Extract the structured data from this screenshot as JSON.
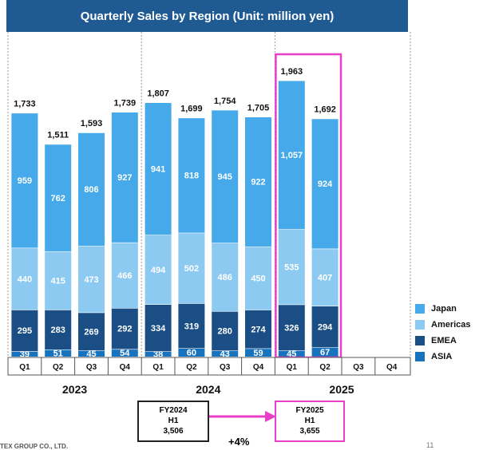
{
  "chart_data": {
    "type": "bar",
    "stacked": true,
    "title": "Quarterly Sales by Region (Unit: million yen)",
    "years": [
      {
        "label": "2023",
        "quarters": [
          "Q1",
          "Q2",
          "Q3",
          "Q4"
        ]
      },
      {
        "label": "2024",
        "quarters": [
          "Q1",
          "Q2",
          "Q3",
          "Q4"
        ]
      },
      {
        "label": "2025",
        "quarters": [
          "Q1",
          "Q2",
          "Q3",
          "Q4"
        ]
      }
    ],
    "categories": [
      "2023 Q1",
      "2023 Q2",
      "2023 Q3",
      "2023 Q4",
      "2024 Q1",
      "2024 Q2",
      "2024 Q3",
      "2024 Q4",
      "2025 Q1",
      "2025 Q2",
      "2025 Q3",
      "2025 Q4"
    ],
    "series": [
      {
        "name": "ASIA",
        "color": "#1873be",
        "values": [
          39,
          51,
          45,
          54,
          38,
          60,
          43,
          59,
          45,
          67,
          null,
          null
        ]
      },
      {
        "name": "EMEA",
        "color": "#1a4e85",
        "values": [
          295,
          283,
          269,
          292,
          334,
          319,
          280,
          274,
          326,
          294,
          null,
          null
        ]
      },
      {
        "name": "Americas",
        "color": "#8dcaf2",
        "values": [
          440,
          415,
          473,
          466,
          494,
          502,
          486,
          450,
          535,
          407,
          null,
          null
        ]
      },
      {
        "name": "Japan",
        "color": "#46a9ea",
        "values": [
          959,
          762,
          806,
          927,
          941,
          818,
          945,
          922,
          1057,
          924,
          null,
          null
        ]
      }
    ],
    "totals": [
      "1,733",
      "1,511",
      "1,593",
      "1,739",
      "1,807",
      "1,699",
      "1,754",
      "1,705",
      "1,963",
      "1,692",
      null,
      null
    ],
    "legend": [
      "Japan",
      "Americas",
      "EMEA",
      "ASIA"
    ],
    "legend_position": "right",
    "highlight_color": "#e83fc8"
  },
  "comparison": {
    "prev": {
      "line1": "FY2024",
      "line2": "H1",
      "value": "3,506"
    },
    "curr": {
      "line1": "FY2025",
      "line2": "H1",
      "value": "3,655"
    },
    "growth": "+4%"
  },
  "footer": {
    "left": "TEX GROUP CO., LTD.",
    "page": "11"
  }
}
